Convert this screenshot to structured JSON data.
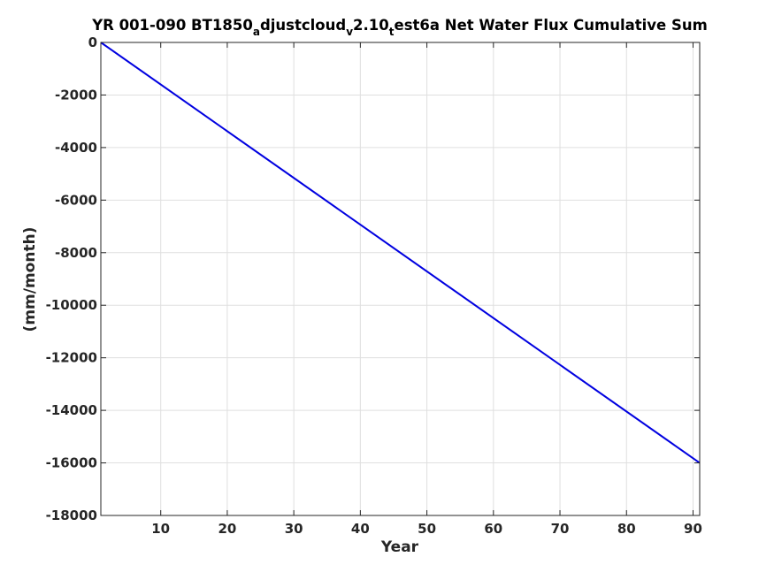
{
  "chart_data": {
    "type": "line",
    "title_parts": [
      {
        "text": "YR 001-090 BT1850",
        "sub": false
      },
      {
        "text": "a",
        "sub": true
      },
      {
        "text": "djustcloud",
        "sub": false
      },
      {
        "text": "v",
        "sub": true
      },
      {
        "text": "2.10",
        "sub": false
      },
      {
        "text": "t",
        "sub": true
      },
      {
        "text": "est6a Net Water Flux Cumulative Sum",
        "sub": false
      }
    ],
    "xlabel": "Year",
    "ylabel": "(mm/month)",
    "xlim": [
      1,
      91
    ],
    "ylim": [
      -18000,
      0
    ],
    "xticks": [
      10,
      20,
      30,
      40,
      50,
      60,
      70,
      80,
      90
    ],
    "yticks": [
      0,
      -2000,
      -4000,
      -6000,
      -8000,
      -10000,
      -12000,
      -14000,
      -16000,
      -18000
    ],
    "grid": true,
    "series": [
      {
        "color": "#0000e0",
        "x": [
          1,
          91
        ],
        "y": [
          0,
          -16000
        ]
      }
    ]
  }
}
